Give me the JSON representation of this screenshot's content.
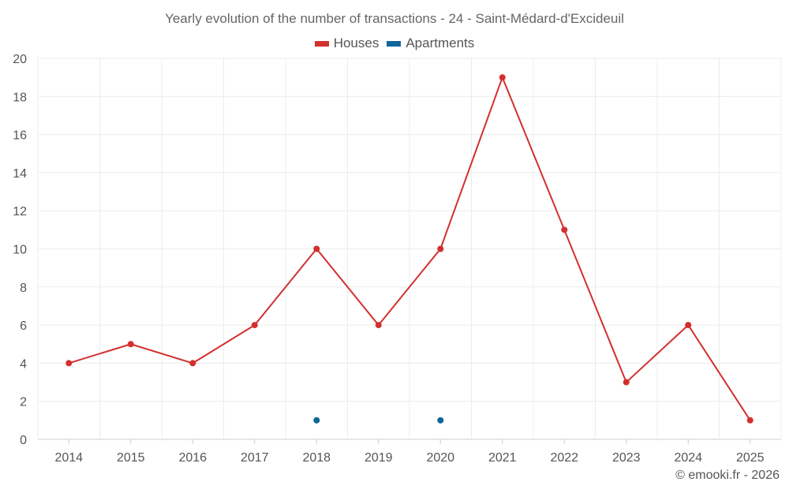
{
  "chart_data": {
    "type": "line",
    "title": "Yearly evolution of the number of transactions - 24 - Saint-Médard-d'Excideuil",
    "categories": [
      "2014",
      "2015",
      "2016",
      "2017",
      "2018",
      "2019",
      "2020",
      "2021",
      "2022",
      "2023",
      "2024",
      "2025"
    ],
    "series": [
      {
        "name": "Houses",
        "color": "#d32f2f",
        "values": [
          4,
          5,
          4,
          6,
          10,
          6,
          10,
          19,
          11,
          3,
          6,
          1
        ]
      },
      {
        "name": "Apartments",
        "color": "#0f6699",
        "values": [
          null,
          null,
          null,
          null,
          1,
          null,
          1,
          null,
          null,
          null,
          null,
          null
        ]
      }
    ],
    "ylim": [
      0,
      20
    ],
    "yticks": [
      "0",
      "2",
      "4",
      "6",
      "8",
      "10",
      "12",
      "14",
      "16",
      "18",
      "20"
    ],
    "xlabel": "",
    "ylabel": "",
    "grid": true,
    "legend_position": "top-center"
  },
  "watermark": "© emooki.fr - 2026"
}
